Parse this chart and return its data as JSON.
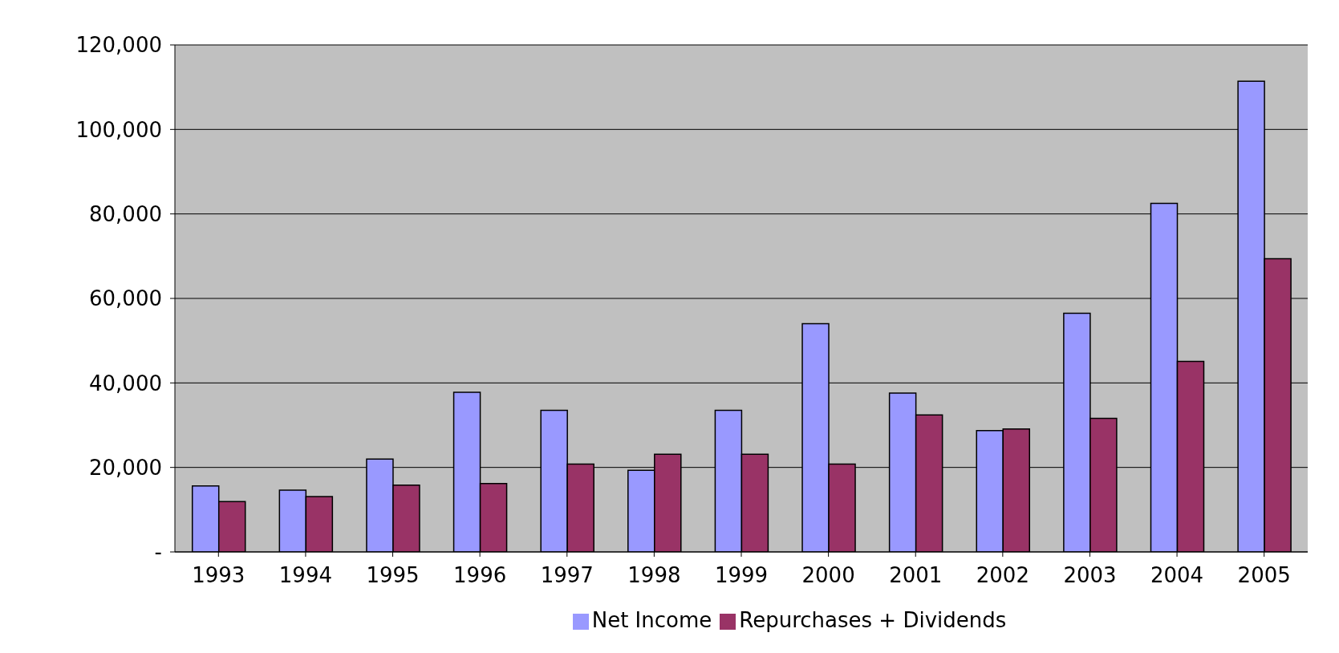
{
  "chart_data": {
    "type": "bar",
    "categories": [
      "1993",
      "1994",
      "1995",
      "1996",
      "1997",
      "1998",
      "1999",
      "2000",
      "2001",
      "2002",
      "2003",
      "2004",
      "2005"
    ],
    "series": [
      {
        "name": "Net Income",
        "color": "#9999ff",
        "values": [
          15600,
          14600,
          22000,
          37800,
          33500,
          19300,
          33500,
          54000,
          37600,
          28700,
          56500,
          82500,
          111400
        ]
      },
      {
        "name": "Repurchases + Dividends",
        "color": "#993366",
        "values": [
          11900,
          13100,
          15800,
          16200,
          20800,
          23100,
          23100,
          20800,
          32400,
          29100,
          31600,
          45100,
          69400
        ]
      }
    ],
    "ylim": [
      0,
      120000
    ],
    "yticks": [
      {
        "value": 0,
        "label": "-"
      },
      {
        "value": 20000,
        "label": "20,000"
      },
      {
        "value": 40000,
        "label": "40,000"
      },
      {
        "value": 60000,
        "label": "60,000"
      },
      {
        "value": 80000,
        "label": "80,000"
      },
      {
        "value": 100000,
        "label": "100,000"
      },
      {
        "value": 120000,
        "label": "120,000"
      }
    ],
    "grid": "y",
    "legend": "bottom"
  }
}
